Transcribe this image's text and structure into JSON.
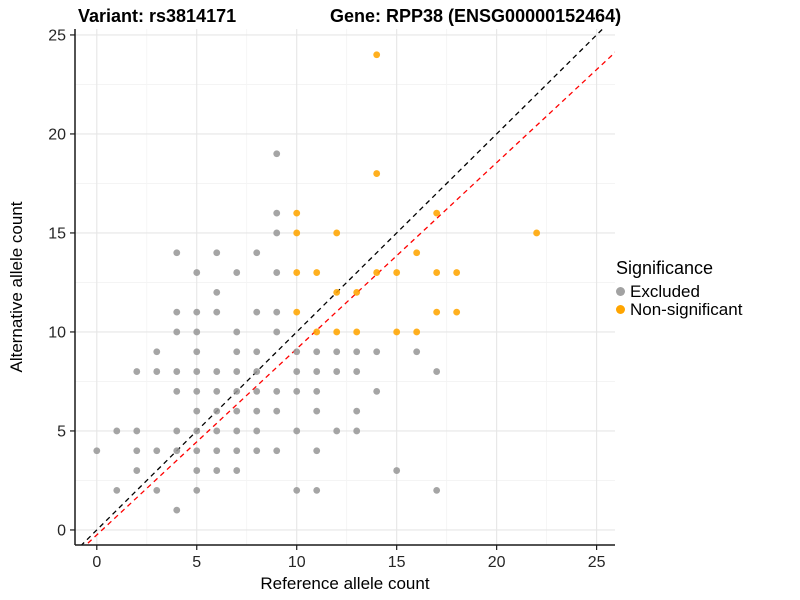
{
  "header": {
    "left_title": "Variant: rs3814171",
    "right_title": "Gene: RPP38 (ENSG00000152464)"
  },
  "axes": {
    "x_label": "Reference allele count",
    "y_label": "Alternative allele count"
  },
  "legend": {
    "title": "Significance",
    "items": [
      {
        "label": "Excluded",
        "color": "#a2a2a2"
      },
      {
        "label": "Non-significant",
        "color": "#ffa500"
      }
    ]
  },
  "chart_data": {
    "type": "scatter",
    "title_left": "Variant: rs3814171",
    "title_right": "Gene: RPP38 (ENSG00000152464)",
    "xlabel": "Reference allele count",
    "ylabel": "Alternative allele count",
    "xlim": [
      -1.09,
      25.92
    ],
    "ylim": [
      -0.76,
      25.3
    ],
    "x_ticks": [
      0,
      5,
      10,
      15,
      20,
      25
    ],
    "y_ticks": [
      0,
      5,
      10,
      15,
      20,
      25
    ],
    "minor_ticks": [
      2.5,
      7.5,
      12.5,
      17.5,
      22.5
    ],
    "grid": true,
    "grid_major_color": "#e6e6e6",
    "grid_minor_color": "#f3f3f3",
    "axis_line_color": "#1a1a1a",
    "tick_label_color": "#262626",
    "point_radius": 3.4,
    "point_opacity": 0.88,
    "legend_position": "right",
    "series": [
      {
        "name": "Excluded",
        "color": "#999999",
        "points": [
          [
            4,
            1
          ],
          [
            1,
            2
          ],
          [
            3,
            2
          ],
          [
            5,
            2
          ],
          [
            10,
            2
          ],
          [
            11,
            2
          ],
          [
            17,
            2
          ],
          [
            2,
            3
          ],
          [
            5,
            3
          ],
          [
            6,
            3
          ],
          [
            7,
            3
          ],
          [
            15,
            3
          ],
          [
            0,
            4
          ],
          [
            2,
            4
          ],
          [
            3,
            4
          ],
          [
            4,
            4
          ],
          [
            5,
            4
          ],
          [
            6,
            4
          ],
          [
            7,
            4
          ],
          [
            8,
            4
          ],
          [
            9,
            4
          ],
          [
            11,
            4
          ],
          [
            1,
            5
          ],
          [
            2,
            5
          ],
          [
            4,
            5
          ],
          [
            5,
            5
          ],
          [
            6,
            5
          ],
          [
            7,
            5
          ],
          [
            8,
            5
          ],
          [
            10,
            5
          ],
          [
            12,
            5
          ],
          [
            13,
            5
          ],
          [
            5,
            6
          ],
          [
            6,
            6
          ],
          [
            7,
            6
          ],
          [
            8,
            6
          ],
          [
            9,
            6
          ],
          [
            11,
            6
          ],
          [
            13,
            6
          ],
          [
            4,
            7
          ],
          [
            5,
            7
          ],
          [
            6,
            7
          ],
          [
            7,
            7
          ],
          [
            8,
            7
          ],
          [
            9,
            7
          ],
          [
            10,
            7
          ],
          [
            11,
            7
          ],
          [
            14,
            7
          ],
          [
            2,
            8
          ],
          [
            3,
            8
          ],
          [
            4,
            8
          ],
          [
            5,
            8
          ],
          [
            6,
            8
          ],
          [
            7,
            8
          ],
          [
            8,
            8
          ],
          [
            10,
            8
          ],
          [
            11,
            8
          ],
          [
            12,
            8
          ],
          [
            13,
            8
          ],
          [
            17,
            8
          ],
          [
            3,
            9
          ],
          [
            5,
            9
          ],
          [
            7,
            9
          ],
          [
            8,
            9
          ],
          [
            10,
            9
          ],
          [
            11,
            9
          ],
          [
            12,
            9
          ],
          [
            13,
            9
          ],
          [
            14,
            9
          ],
          [
            16,
            9
          ],
          [
            4,
            10
          ],
          [
            5,
            10
          ],
          [
            7,
            10
          ],
          [
            9,
            10
          ],
          [
            4,
            11
          ],
          [
            5,
            11
          ],
          [
            6,
            11
          ],
          [
            8,
            11
          ],
          [
            9,
            11
          ],
          [
            6,
            12
          ],
          [
            5,
            13
          ],
          [
            7,
            13
          ],
          [
            9,
            13
          ],
          [
            4,
            14
          ],
          [
            6,
            14
          ],
          [
            8,
            14
          ],
          [
            9,
            15
          ],
          [
            9,
            16
          ],
          [
            9,
            19
          ]
        ]
      },
      {
        "name": "Non-significant",
        "color": "#ffa500",
        "points": [
          [
            11,
            10
          ],
          [
            12,
            10
          ],
          [
            13,
            10
          ],
          [
            15,
            10
          ],
          [
            16,
            10
          ],
          [
            10,
            11
          ],
          [
            17,
            11
          ],
          [
            18,
            11
          ],
          [
            12,
            12
          ],
          [
            13,
            12
          ],
          [
            10,
            13
          ],
          [
            11,
            13
          ],
          [
            14,
            13
          ],
          [
            15,
            13
          ],
          [
            17,
            13
          ],
          [
            18,
            13
          ],
          [
            16,
            14
          ],
          [
            10,
            15
          ],
          [
            12,
            15
          ],
          [
            22,
            15
          ],
          [
            10,
            16
          ],
          [
            17,
            16
          ],
          [
            14,
            18
          ],
          [
            14,
            24
          ]
        ]
      }
    ],
    "lines": [
      {
        "name": "identity-line",
        "slope": 1.0,
        "intercept": 0.0,
        "color": "#000000",
        "dash": "5 4"
      },
      {
        "name": "ratio-line",
        "slope": 0.94,
        "intercept": -0.25,
        "color": "#ff0000",
        "dash": "5 4"
      }
    ]
  }
}
